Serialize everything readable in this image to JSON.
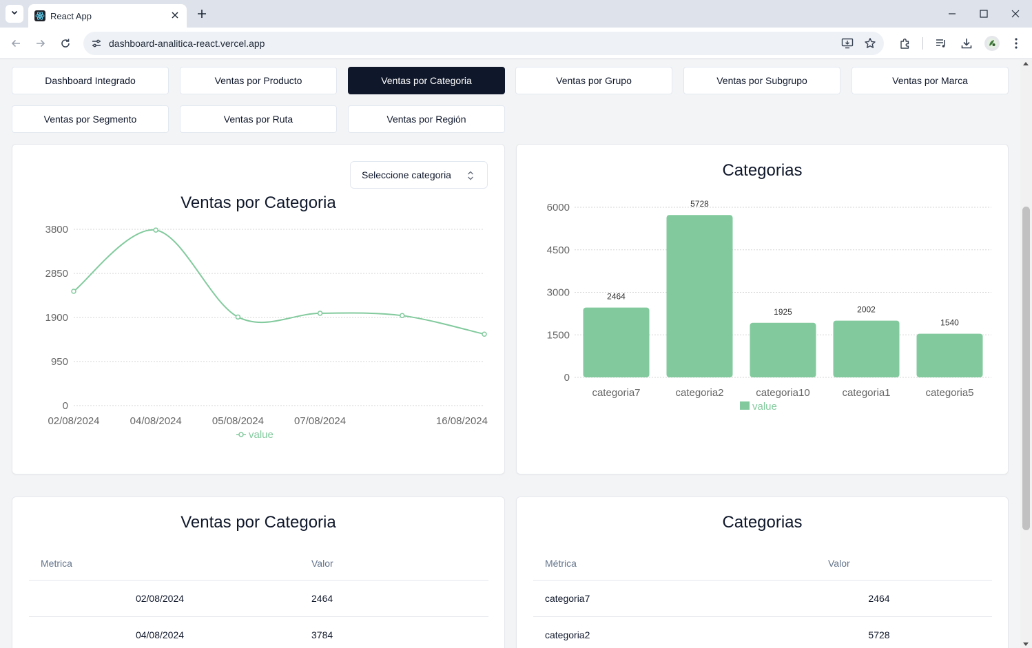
{
  "browser": {
    "tab_title": "React App",
    "url": "dashboard-analitica-react.vercel.app"
  },
  "nav": [
    {
      "label": "Dashboard Integrado",
      "active": false
    },
    {
      "label": "Ventas por Producto",
      "active": false
    },
    {
      "label": "Ventas por Categoria",
      "active": true
    },
    {
      "label": "Ventas por Grupo",
      "active": false
    },
    {
      "label": "Ventas por Subgrupo",
      "active": false
    },
    {
      "label": "Ventas por Marca",
      "active": false
    },
    {
      "label": "Ventas por Segmento",
      "active": false
    },
    {
      "label": "Ventas por Ruta",
      "active": false
    },
    {
      "label": "Ventas por Región",
      "active": false
    }
  ],
  "line_card": {
    "title": "Ventas por Categoria",
    "select_label": "Seleccione categoria"
  },
  "bar_card": {
    "title": "Categorias"
  },
  "colors": {
    "accent": "#82ca9d",
    "active_nav": "#0f172a",
    "grid": "#d6d6d6",
    "axis_text": "#666666"
  },
  "chart_data": [
    {
      "type": "line",
      "x": [
        "02/08/2024",
        "04/08/2024",
        "05/08/2024",
        "07/08/2024",
        "",
        "16/08/2024"
      ],
      "series": [
        {
          "name": "value",
          "values": [
            2464,
            3784,
            1910,
            1990,
            1940,
            1540
          ]
        }
      ],
      "yticks": [
        0,
        950,
        1900,
        2850,
        3800
      ],
      "ylim": [
        0,
        3800
      ],
      "grid": true,
      "legend": "bottom"
    },
    {
      "type": "bar",
      "categories": [
        "categoria7",
        "categoria2",
        "categoria10",
        "categoria1",
        "categoria5"
      ],
      "series": [
        {
          "name": "value",
          "values": [
            2464,
            5728,
            1925,
            2002,
            1540
          ]
        }
      ],
      "yticks": [
        0,
        1500,
        3000,
        4500,
        6000
      ],
      "ylim": [
        0,
        6000
      ],
      "grid": true,
      "data_labels": true,
      "legend": "bottom"
    }
  ],
  "line_table": {
    "title": "Ventas por Categoria",
    "headers": [
      "Metrica",
      "Valor"
    ],
    "rows": [
      [
        "02/08/2024",
        "2464"
      ],
      [
        "04/08/2024",
        "3784"
      ]
    ]
  },
  "bar_table": {
    "title": "Categorias",
    "headers": [
      "Métrica",
      "Valor"
    ],
    "rows": [
      [
        "categoria7",
        "2464"
      ],
      [
        "categoria2",
        "5728"
      ]
    ]
  }
}
